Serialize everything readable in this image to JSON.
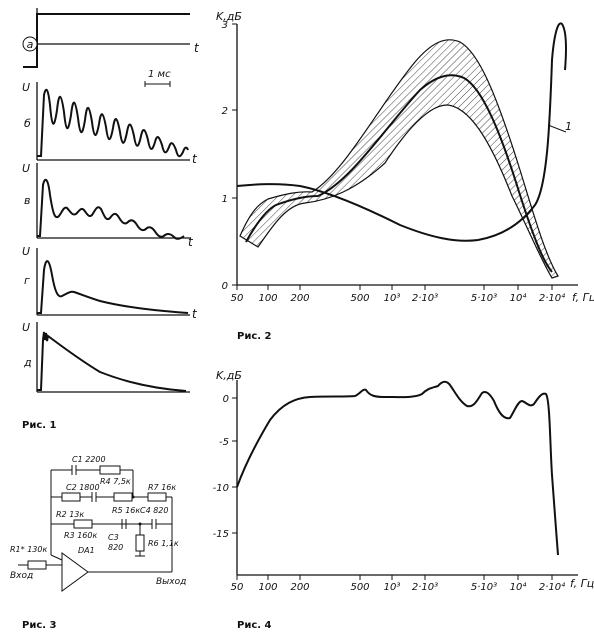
{
  "fig1": {
    "caption": "Рис. 1",
    "scale_label": "1 мс",
    "panels": [
      {
        "letter": "а",
        "ylabel": "U",
        "xlabel": "t"
      },
      {
        "letter": "б",
        "ylabel": "U",
        "xlabel": "t"
      },
      {
        "letter": "в",
        "ylabel": "U",
        "xlabel": "t"
      },
      {
        "letter": "г",
        "ylabel": "U",
        "xlabel": "t"
      },
      {
        "letter": "д",
        "ylabel": "U",
        "xlabel": ""
      }
    ]
  },
  "fig2": {
    "caption": "Рис. 2",
    "ylabel": "K,дБ",
    "xlabel": "f, Гц",
    "curve_label": "1",
    "x_ticks": [
      "50",
      "100",
      "200",
      "500",
      "10³",
      "2·10³",
      "5·10³",
      "10⁴",
      "2·10⁴"
    ],
    "y_ticks": [
      "3",
      "2",
      "1",
      "0"
    ]
  },
  "fig3": {
    "caption": "Рис. 3",
    "components": {
      "c1": "C1 2200",
      "c2": "C2 1800",
      "r4": "R4 7,5к",
      "r7": "R7 16к",
      "r2": "R2 13к",
      "r5": "R5 16к",
      "c4": "C4 820",
      "r3": "R3 160к",
      "c3a": "C3",
      "c3b": "820",
      "r6": "R6 1,1к",
      "r1": "R1* 130к",
      "da1": "DA1"
    },
    "input_label": "Вход",
    "output_label": "Выход"
  },
  "fig4": {
    "caption": "Рис. 4",
    "ylabel": "K,дБ",
    "xlabel": "f, Гц",
    "x_ticks": [
      "50",
      "100",
      "200",
      "500",
      "10³",
      "2·10³",
      "5·10³",
      "10⁴",
      "2·10⁴"
    ],
    "y_ticks": [
      "0",
      "-5",
      "-10",
      "-15"
    ]
  },
  "chart_data": [
    {
      "type": "line",
      "xlabel": "f, Гц",
      "ylabel": "K,дБ",
      "x_scale": "log",
      "xlim": [
        50,
        26000
      ],
      "ylim": [
        0,
        3
      ],
      "grid": false,
      "series": [
        {
          "name": "1",
          "x": [
            50,
            100,
            200,
            500,
            1000,
            2000,
            5000,
            10000,
            15000,
            20000,
            22000
          ],
          "y": [
            1.15,
            1.15,
            1.1,
            0.95,
            0.75,
            0.55,
            0.6,
            1.1,
            1.9,
            2.8,
            3.0
          ]
        },
        {
          "x": [
            55,
            100,
            200,
            500,
            1000,
            2000,
            3000,
            5000,
            10000,
            18000
          ],
          "y": [
            0.55,
            0.8,
            1.0,
            1.4,
            1.9,
            2.3,
            2.35,
            2.0,
            0.9,
            0.15
          ]
        }
      ]
    },
    {
      "type": "line",
      "xlabel": "f, Гц",
      "ylabel": "K,дБ",
      "x_scale": "log",
      "xlim": [
        50,
        26000
      ],
      "ylim": [
        -18,
        2
      ],
      "grid": false,
      "series": [
        {
          "x": [
            50,
            75,
            100,
            150,
            200,
            300,
            500,
            550,
            600,
            1000,
            1500,
            2000,
            3000,
            4000,
            5000,
            6000,
            7000,
            8000,
            9000,
            10000,
            11000,
            13000,
            16000,
            18000,
            19000,
            20000,
            21000
          ],
          "y": [
            -10,
            -6,
            -3,
            -0.6,
            0,
            0,
            0,
            0.8,
            0,
            0,
            0,
            0.8,
            1.8,
            0,
            0.8,
            0,
            -0.8,
            -0.5,
            -1.8,
            -1.8,
            0,
            0,
            0.8,
            0,
            -5,
            -10,
            -17
          ]
        }
      ]
    }
  ]
}
